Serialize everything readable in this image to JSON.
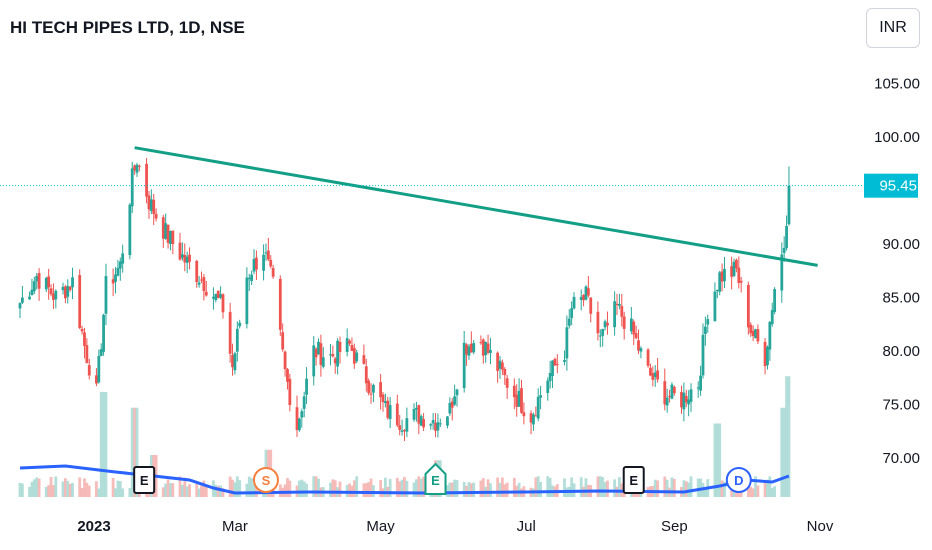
{
  "header": {
    "title": "HI TECH PIPES LTD, 1D, NSE",
    "currency": "INR"
  },
  "colors": {
    "up": "#26a69a",
    "down": "#ef5350",
    "trendline": "#129f86",
    "volume_ma": "#2962ff",
    "price_tag": "#00bcd4",
    "price_line": "#00bcd4"
  },
  "chart_data": {
    "type": "candlestick",
    "symbol": "HI TECH PIPES LTD",
    "interval": "1D",
    "exchange": "NSE",
    "y_ticks": [
      70.0,
      75.0,
      80.0,
      85.0,
      90.0,
      95.45,
      100.0,
      105.0
    ],
    "y_tick_labels": [
      "70.00",
      "75.00",
      "80.00",
      "85.00",
      "90.00",
      "95.45",
      "100.00",
      "105.00"
    ],
    "ylim": [
      66.5,
      108.5
    ],
    "x_labels": [
      "2023",
      "Mar",
      "May",
      "Jul",
      "Sep",
      "Nov"
    ],
    "last_price": 95.45,
    "last_price_label": "95.45",
    "trendline": {
      "from": {
        "date": "2023-01-18",
        "price": 99.0
      },
      "to": {
        "date": "2023-10-31",
        "price": 88.0
      }
    },
    "series": [
      {
        "name": "price",
        "anchors": [
          [
            "2022-12-01",
            84.5
          ],
          [
            "2022-12-08",
            87.0
          ],
          [
            "2022-12-16",
            85.0
          ],
          [
            "2022-12-23",
            86.5
          ],
          [
            "2022-12-28",
            80.5
          ],
          [
            "2023-01-02",
            76.0
          ],
          [
            "2023-01-06",
            86.0
          ],
          [
            "2023-01-12",
            88.0
          ],
          [
            "2023-01-17",
            96.0
          ],
          [
            "2023-01-19",
            98.0
          ],
          [
            "2023-01-24",
            94.0
          ],
          [
            "2023-01-31",
            91.0
          ],
          [
            "2023-02-08",
            88.5
          ],
          [
            "2023-02-16",
            86.5
          ],
          [
            "2023-02-24",
            84.0
          ],
          [
            "2023-02-28",
            78.5
          ],
          [
            "2023-03-06",
            87.0
          ],
          [
            "2023-03-13",
            89.5
          ],
          [
            "2023-03-17",
            86.0
          ],
          [
            "2023-03-22",
            78.0
          ],
          [
            "2023-03-27",
            73.0
          ],
          [
            "2023-04-03",
            80.0
          ],
          [
            "2023-04-10",
            79.5
          ],
          [
            "2023-04-18",
            80.5
          ],
          [
            "2023-04-25",
            77.5
          ],
          [
            "2023-05-03",
            74.5
          ],
          [
            "2023-05-10",
            73.5
          ],
          [
            "2023-05-17",
            74.0
          ],
          [
            "2023-05-24",
            73.5
          ],
          [
            "2023-05-30",
            74.5
          ],
          [
            "2023-06-05",
            80.5
          ],
          [
            "2023-06-12",
            81.0
          ],
          [
            "2023-06-19",
            78.5
          ],
          [
            "2023-06-26",
            76.0
          ],
          [
            "2023-07-03",
            74.0
          ],
          [
            "2023-07-10",
            77.5
          ],
          [
            "2023-07-17",
            80.0
          ],
          [
            "2023-07-20",
            84.0
          ],
          [
            "2023-07-26",
            85.0
          ],
          [
            "2023-08-01",
            81.0
          ],
          [
            "2023-08-08",
            84.0
          ],
          [
            "2023-08-14",
            82.0
          ],
          [
            "2023-08-21",
            78.0
          ],
          [
            "2023-08-28",
            76.0
          ],
          [
            "2023-09-04",
            75.5
          ],
          [
            "2023-09-11",
            77.0
          ],
          [
            "2023-09-15",
            84.0
          ],
          [
            "2023-09-20",
            87.0
          ],
          [
            "2023-09-27",
            87.5
          ],
          [
            "2023-10-03",
            82.0
          ],
          [
            "2023-10-09",
            79.5
          ],
          [
            "2023-10-13",
            86.0
          ],
          [
            "2023-10-17",
            90.0
          ],
          [
            "2023-10-19",
            95.45
          ]
        ]
      },
      {
        "name": "volume",
        "relative_peaks": [
          [
            "2023-01-05",
            1.0
          ],
          [
            "2023-01-18",
            0.85
          ],
          [
            "2023-01-26",
            0.4
          ],
          [
            "2023-03-15",
            0.45
          ],
          [
            "2023-05-25",
            0.35
          ],
          [
            "2023-09-19",
            0.7
          ],
          [
            "2023-10-16",
            0.85
          ],
          [
            "2023-10-19",
            1.15
          ]
        ]
      },
      {
        "name": "volume_ma"
      }
    ],
    "time_range": [
      "2022-12-01",
      "2023-11-15"
    ]
  },
  "events": [
    {
      "label": "E",
      "type": "earnings",
      "date": "2023-01-22",
      "color": "#131722",
      "shape": "square"
    },
    {
      "label": "S",
      "type": "split",
      "date": "2023-03-14",
      "color": "#f57f3c",
      "shape": "circle"
    },
    {
      "label": "E",
      "type": "earnings",
      "date": "2023-05-24",
      "color": "#129f86",
      "shape": "pentagon"
    },
    {
      "label": "E",
      "type": "earnings",
      "date": "2023-08-15",
      "color": "#131722",
      "shape": "square"
    },
    {
      "label": "D",
      "type": "dividend",
      "date": "2023-09-28",
      "color": "#2962ff",
      "shape": "circle"
    }
  ]
}
